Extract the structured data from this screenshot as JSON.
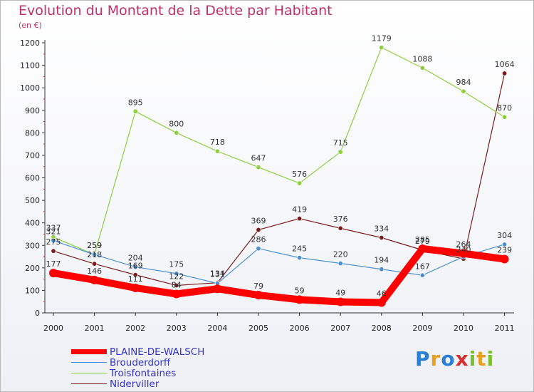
{
  "title": "Evolution du Montant de la Dette par Habitant",
  "subtitle": "(en €)",
  "logo": "Proxiti",
  "chart_data": {
    "type": "line",
    "categories": [
      "2000",
      "2001",
      "2002",
      "2003",
      "2004",
      "2005",
      "2006",
      "2007",
      "2008",
      "2009",
      "2010",
      "2011"
    ],
    "yticks": [
      0,
      100,
      200,
      300,
      400,
      500,
      600,
      700,
      800,
      900,
      1000,
      1100,
      1200
    ],
    "ylim": [
      0,
      1200
    ],
    "grid": false,
    "legend_position": "bottom-left",
    "series": [
      {
        "name": "PLAINE-DE-WALSCH",
        "color": "#ff0000",
        "values": [
          177,
          146,
          111,
          84,
          107,
          79,
          59,
          49,
          46,
          285,
          264,
          239
        ],
        "labels": [
          "177",
          "146",
          "111",
          "84",
          "",
          "79",
          "59",
          "49",
          "46",
          "285",
          "264",
          "239"
        ]
      },
      {
        "name": "Brouderdorff",
        "color": "#4f8fcf",
        "values": [
          321,
          259,
          204,
          175,
          131,
          286,
          245,
          220,
          194,
          167,
          250,
          304
        ],
        "labels": [
          "321",
          "259",
          "204",
          "175",
          "131",
          "286",
          "245",
          "220",
          "194",
          "167",
          "",
          "304"
        ]
      },
      {
        "name": "Troisfontaines",
        "color": "#8ecf3f",
        "values": [
          337,
          259,
          895,
          800,
          718,
          647,
          576,
          715,
          1179,
          1088,
          984,
          870
        ],
        "labels": [
          "337",
          "259",
          "895",
          "800",
          "718",
          "647",
          "576",
          "715",
          "1179",
          "1088",
          "984",
          "870"
        ]
      },
      {
        "name": "Niderviller",
        "color": "#7a1c1c",
        "values": [
          275,
          218,
          169,
          122,
          134,
          369,
          419,
          376,
          334,
          279,
          240,
          1064
        ],
        "labels": [
          "275",
          "218",
          "169",
          "122",
          "134",
          "369",
          "419",
          "376",
          "334",
          "279",
          "240",
          "1064"
        ]
      }
    ]
  }
}
